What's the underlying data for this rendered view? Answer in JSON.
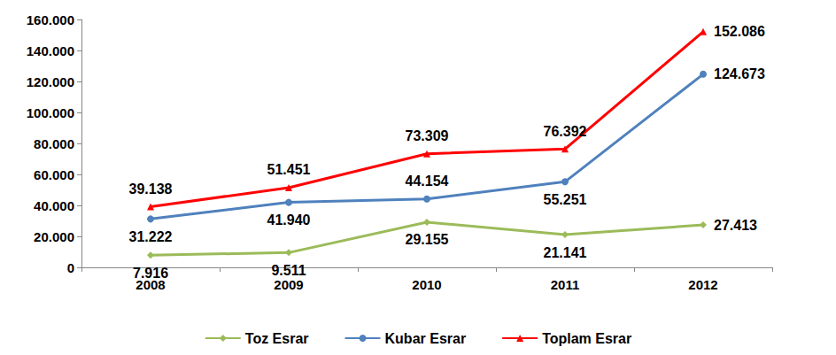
{
  "chart_data": {
    "type": "line",
    "categories": [
      "2008",
      "2009",
      "2010",
      "2011",
      "2012"
    ],
    "series": [
      {
        "name": "Toz Esrar",
        "color": "#9BBB59",
        "marker": "diamond",
        "values": [
          7916,
          9511,
          29155,
          21141,
          27413
        ],
        "value_labels": [
          "7.916",
          "9.511",
          "29.155",
          "21.141",
          "27.413"
        ]
      },
      {
        "name": "Kubar Esrar",
        "color": "#4F81BD",
        "marker": "circle",
        "values": [
          31222,
          41940,
          44154,
          55251,
          124673
        ],
        "value_labels": [
          "31.222",
          "41.940",
          "44.154",
          "55.251",
          "124.673"
        ]
      },
      {
        "name": "Toplam Esrar",
        "color": "#FF0000",
        "marker": "triangle",
        "values": [
          39138,
          51451,
          73309,
          76392,
          152086
        ],
        "value_labels": [
          "39.138",
          "51.451",
          "73.309",
          "76.392",
          "152.086"
        ]
      }
    ],
    "ylim": [
      0,
      160000
    ],
    "yticks": [
      0,
      {
        "value": 20000,
        "label": "20.000"
      },
      {
        "value": 40000,
        "label": "40.000"
      },
      {
        "value": 60000,
        "label": "60.000"
      },
      {
        "value": 80000,
        "label": "80.000"
      },
      {
        "value": 100000,
        "label": "100.000"
      },
      {
        "value": 120000,
        "label": "120.000"
      },
      {
        "value": 140000,
        "label": "140.000"
      },
      {
        "value": 160000,
        "label": "160.000"
      }
    ],
    "grid": false,
    "legend": "bottom",
    "data_labels": true
  }
}
